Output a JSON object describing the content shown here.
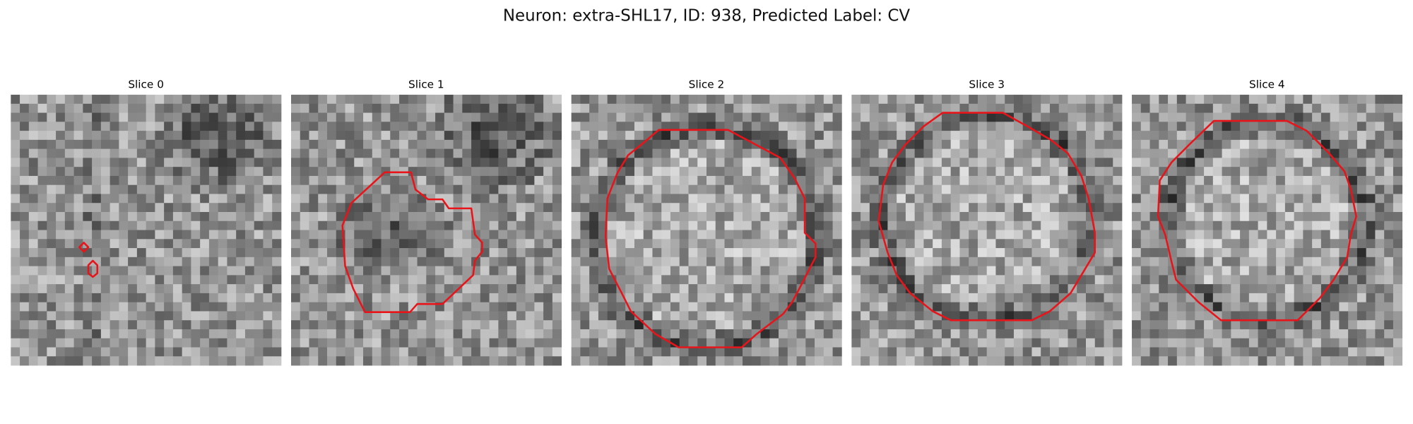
{
  "title": "Neuron: extra-SHL17, ID: 938, Predicted Label: CV",
  "panels": [
    {
      "title": "Slice 0"
    },
    {
      "title": "Slice 1"
    },
    {
      "title": "Slice 2"
    },
    {
      "title": "Slice 3"
    },
    {
      "title": "Slice 4"
    }
  ]
}
